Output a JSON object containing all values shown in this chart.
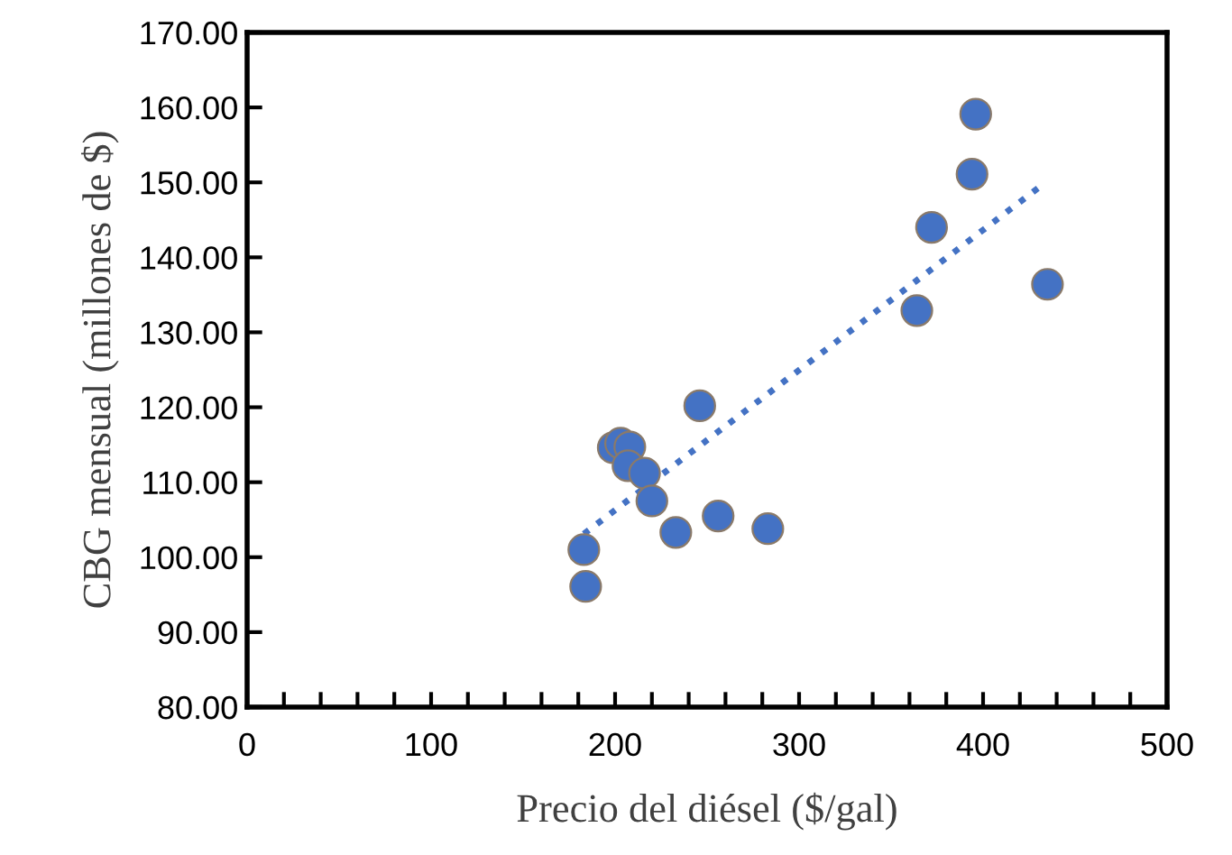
{
  "chart_data": {
    "type": "scatter",
    "xlabel": "Precio del diésel ($/gal)",
    "ylabel": "CBG mensual (millones de $)",
    "series": [
      {
        "color": "#4472c4",
        "marker": "circle",
        "x": [
          183,
          184,
          199,
          203,
          208,
          207,
          216,
          220,
          233,
          246,
          256,
          283,
          364,
          372,
          394,
          396,
          435
        ],
        "values": [
          101.0,
          96.1,
          114.6,
          115.2,
          114.7,
          112.2,
          111.2,
          107.5,
          103.3,
          120.2,
          105.5,
          103.8,
          132.9,
          144.0,
          151.1,
          159.1,
          136.4
        ]
      },
      {
        "type": "line",
        "color": "#4472c4",
        "line_style": "dotted",
        "marker": "none",
        "x": [
          183,
          434
        ],
        "values": [
          103.1,
          150.0
        ]
      }
    ],
    "xlim": [
      0,
      500
    ],
    "xticks": [
      0,
      {
        "value": 20,
        "label": null
      },
      {
        "value": 40,
        "label": null
      },
      {
        "value": 60,
        "label": null
      },
      {
        "value": 80,
        "label": null
      },
      100,
      {
        "value": 120,
        "label": null
      },
      {
        "value": 140,
        "label": null
      },
      {
        "value": 160,
        "label": null
      },
      {
        "value": 180,
        "label": null
      },
      200,
      {
        "value": 220,
        "label": null
      },
      {
        "value": 240,
        "label": null
      },
      {
        "value": 260,
        "label": null
      },
      {
        "value": 280,
        "label": null
      },
      300,
      {
        "value": 320,
        "label": null
      },
      {
        "value": 340,
        "label": null
      },
      {
        "value": 360,
        "label": null
      },
      {
        "value": 380,
        "label": null
      },
      400,
      {
        "value": 420,
        "label": null
      },
      {
        "value": 440,
        "label": null
      },
      {
        "value": 460,
        "label": null
      },
      {
        "value": 480,
        "label": null
      },
      500
    ],
    "ylim": [
      80,
      170
    ],
    "yticks": [
      {
        "value": 80,
        "label": "80.00"
      },
      {
        "value": 90,
        "label": "90.00"
      },
      {
        "value": 100,
        "label": "100.00"
      },
      {
        "value": 110,
        "label": "110.00"
      },
      {
        "value": 120,
        "label": "120.00"
      },
      {
        "value": 130,
        "label": "130.00"
      },
      {
        "value": 140,
        "label": "140.00"
      },
      {
        "value": 150,
        "label": "150.00"
      },
      {
        "value": 160,
        "label": "160.00"
      },
      {
        "value": 170,
        "label": "170.00"
      }
    ],
    "grid": false,
    "legend": false
  }
}
